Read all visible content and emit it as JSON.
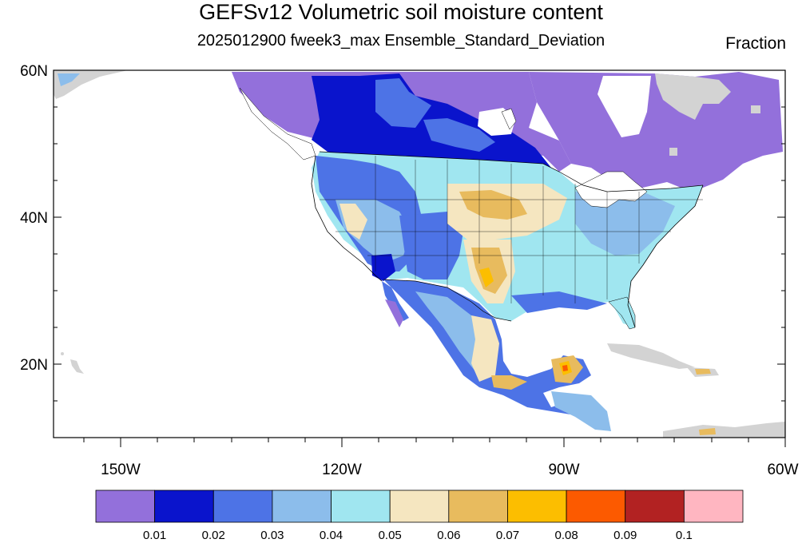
{
  "title": "GEFSv12 Volumetric soil moisture content",
  "subtitle": "2025012900 fweek3_max Ensemble_Standard_Deviation",
  "units": "Fraction",
  "lat_labels": [
    "60N",
    "40N",
    "20N"
  ],
  "lon_labels": [
    "150W",
    "120W",
    "90W",
    "60W"
  ],
  "colorbar": {
    "colors": [
      "#9370DB",
      "#0A14CC",
      "#4D73E6",
      "#8CBDEB",
      "#A0E6F0",
      "#F5E6C0",
      "#E8BB5E",
      "#FCBE00",
      "#FC5A00",
      "#B22222",
      "#FFB6C1"
    ],
    "labels": [
      "0.01",
      "0.02",
      "0.03",
      "0.04",
      "0.05",
      "0.06",
      "0.07",
      "0.08",
      "0.09",
      "0.1"
    ]
  },
  "colors": {
    "ocean": "#FFFFFF",
    "missing_land": "#D3D3D3",
    "coast": "#000000"
  }
}
